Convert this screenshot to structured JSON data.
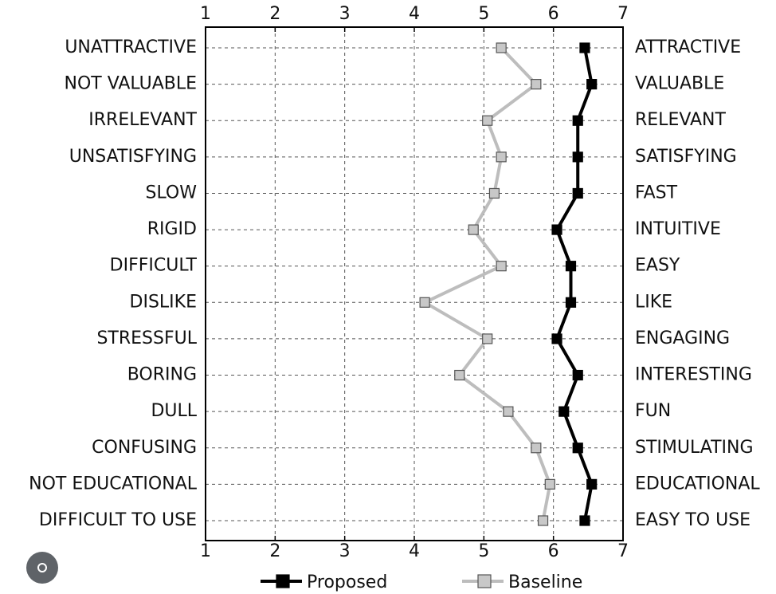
{
  "chart_data": {
    "type": "line",
    "orientation": "horizontal",
    "categories": [
      "UNATTRACTIVE",
      "NOT VALUABLE",
      "IRRELEVANT",
      "UNSATISFYING",
      "SLOW",
      "RIGID",
      "DIFFICULT",
      "DISLIKE",
      "STRESSFUL",
      "BORING",
      "DULL",
      "CONFUSING",
      "NOT EDUCATIONAL",
      "DIFFICULT TO USE"
    ],
    "right_categories": [
      "ATTRACTIVE",
      "VALUABLE",
      "RELEVANT",
      "SATISFYING",
      "FAST",
      "INTUITIVE",
      "EASY",
      "LIKE",
      "ENGAGING",
      "INTERESTING",
      "FUN",
      "STIMULATING",
      "EDUCATIONAL",
      "EASY TO USE"
    ],
    "series": [
      {
        "name": "Proposed",
        "color": "#000000",
        "marker_fill": "#000000",
        "values": [
          6.45,
          6.55,
          6.35,
          6.35,
          6.35,
          6.05,
          6.25,
          6.25,
          6.05,
          6.35,
          6.15,
          6.35,
          6.55,
          6.45
        ]
      },
      {
        "name": "Baseline",
        "color": "#bdbdbd",
        "marker_fill": "#c8c8c8",
        "values": [
          5.25,
          5.75,
          5.05,
          5.25,
          5.15,
          4.85,
          5.25,
          4.15,
          5.05,
          4.65,
          5.35,
          5.75,
          5.95,
          5.85
        ]
      }
    ],
    "xlim": [
      1,
      7
    ],
    "xticks": [
      1,
      2,
      3,
      4,
      5,
      6,
      7
    ],
    "grid": true
  }
}
